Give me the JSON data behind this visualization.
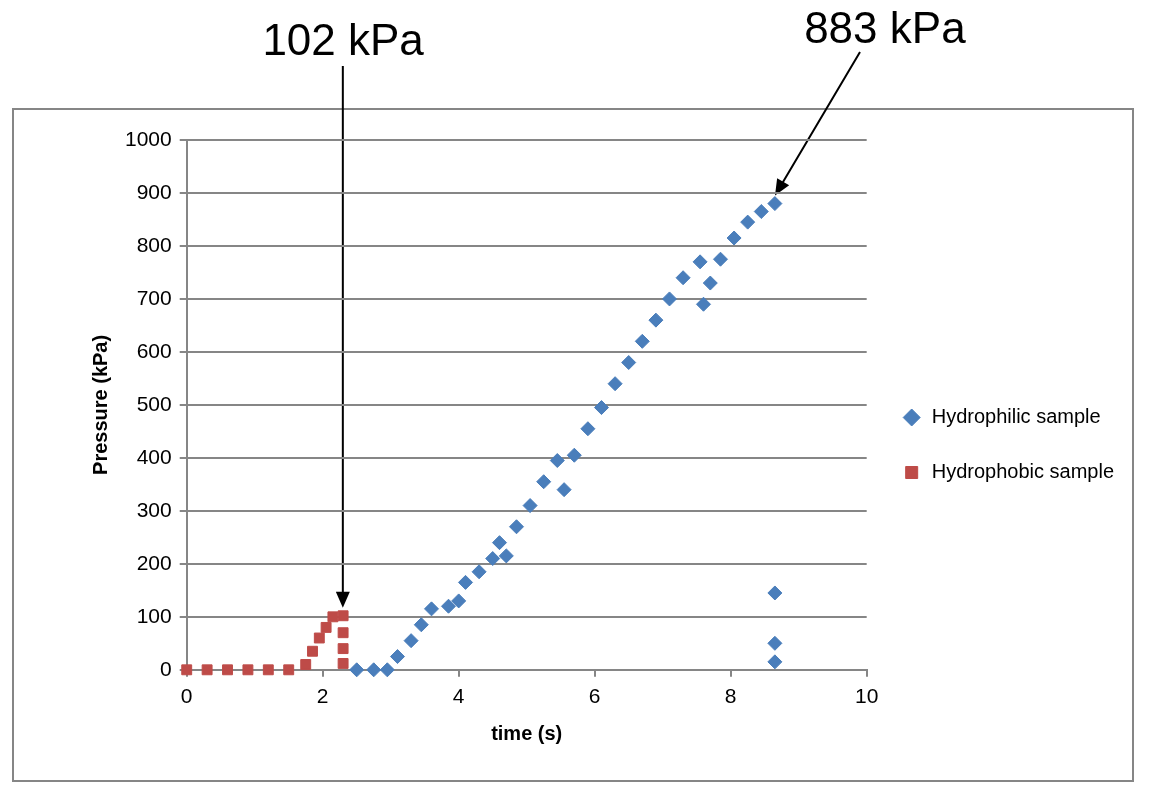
{
  "chart_data": {
    "type": "scatter",
    "xlabel": "time (s)",
    "ylabel": "Pressure (kPa)",
    "xlim": [
      0,
      10
    ],
    "xticks": [
      0,
      2,
      4,
      6,
      8,
      10
    ],
    "ylim": [
      0,
      1000
    ],
    "yticks": [
      0,
      100,
      200,
      300,
      400,
      500,
      600,
      700,
      800,
      900,
      1000
    ],
    "grid": "y",
    "legend": "right",
    "series": [
      {
        "name": "Hydrophilic sample",
        "color": "#4a7ebb",
        "marker": "diamond",
        "x": [
          2.5,
          2.75,
          2.95,
          3.1,
          3.3,
          3.45,
          3.6,
          3.85,
          4.0,
          4.1,
          4.3,
          4.5,
          4.6,
          4.7,
          4.85,
          5.05,
          5.25,
          5.45,
          5.55,
          5.7,
          5.9,
          6.1,
          6.3,
          6.5,
          6.7,
          6.9,
          7.1,
          7.3,
          7.55,
          7.6,
          7.7,
          7.85,
          8.05,
          8.25,
          8.45,
          8.65,
          8.65,
          8.65,
          8.65
        ],
        "values": [
          0,
          0,
          0,
          25,
          55,
          85,
          115,
          120,
          130,
          165,
          185,
          210,
          240,
          215,
          270,
          310,
          355,
          395,
          340,
          405,
          455,
          495,
          540,
          580,
          620,
          660,
          700,
          740,
          770,
          690,
          730,
          775,
          815,
          845,
          865,
          880,
          145,
          50,
          15
        ]
      },
      {
        "name": "Hydrophobic sample",
        "color": "#be4b48",
        "marker": "square",
        "x": [
          0,
          0.3,
          0.6,
          0.9,
          1.2,
          1.5,
          1.75,
          1.85,
          1.95,
          2.05,
          2.15,
          2.3,
          2.3,
          2.3,
          2.3
        ],
        "values": [
          0,
          0,
          0,
          0,
          0,
          0,
          10,
          35,
          60,
          80,
          100,
          102,
          70,
          40,
          12
        ]
      }
    ],
    "annotations": [
      "102 kPa",
      "883 kPa"
    ]
  }
}
